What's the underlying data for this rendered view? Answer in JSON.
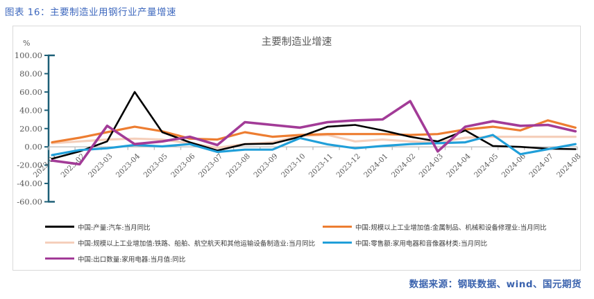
{
  "figure": {
    "caption": "图表 16：主要制造业用钢行业产量增速"
  },
  "source": {
    "text": "数据来源：钢联数据、wind、国元期货"
  },
  "chart_data": {
    "type": "line",
    "title": "主要制造业增速",
    "unit_label": "%",
    "ylim": [
      -60,
      100
    ],
    "y_tick_interval": 20,
    "y_tick_labels": [
      "100.00",
      "80.00",
      "60.00",
      "40.00",
      "20.00",
      "0.00",
      "-20.00",
      "-40.00",
      "-60.00"
    ],
    "grid": false,
    "legend_position": "bottom",
    "axis_color": "#1C5F77",
    "baseline_color": "#BFBFBF",
    "tick_label_color": "#595959",
    "categories": [
      "2023-01",
      "2023-02",
      "2023-03",
      "2023-04",
      "2023-05",
      "2023-06",
      "2023-07",
      "2023-08",
      "2023-09",
      "2023-10",
      "2023-11",
      "2023-12",
      "2024-01",
      "2024-02",
      "2024-03",
      "2024-04",
      "2024-05",
      "2024-06",
      "2024-07",
      "2024-08"
    ],
    "series": [
      {
        "name": "中国:产量:汽车:当月同比",
        "color": "#000000",
        "stroke_width": 2.6,
        "values": [
          -13,
          -5,
          6,
          60,
          16,
          5,
          -4,
          3,
          3.5,
          11,
          22,
          24,
          18,
          11,
          6,
          18,
          1,
          0,
          -2,
          -2.5
        ]
      },
      {
        "name": "中国:规模以上工业增加值:金属制品、机械和设备修理业:当月同比",
        "color": "#ED7D31",
        "stroke_width": 3.2,
        "values": [
          5,
          10,
          16,
          22,
          17,
          9,
          8,
          16,
          11,
          13,
          14,
          14,
          14,
          13,
          14,
          19,
          22,
          18,
          29,
          21
        ]
      },
      {
        "name": "中国:规模以上工业增加值:铁路、船舶、航空航天和其他运输设备制造业:当月同比",
        "color": "#F5CFBB",
        "stroke_width": 3.2,
        "values": [
          4,
          6,
          8,
          9,
          8,
          4,
          -1,
          3,
          5,
          12,
          13,
          6,
          8,
          6,
          5,
          10,
          11,
          11,
          11,
          11
        ]
      },
      {
        "name": "中国:零售额:家用电器和音像器材类:当月同比",
        "color": "#209FD9",
        "stroke_width": 3.2,
        "values": [
          -9,
          -3.5,
          -1.5,
          2,
          0.5,
          3,
          -5.5,
          -3,
          -3,
          9.6,
          2.7,
          -1.5,
          1,
          3,
          4,
          5,
          13,
          -8,
          -2.5,
          3
        ]
      },
      {
        "name": "中国:出口数量:家用电器:当月值:同比",
        "color": "#A23B97",
        "stroke_width": 3.6,
        "values": [
          -15,
          -19,
          23,
          3,
          6,
          11,
          2,
          27,
          24,
          21,
          27,
          29,
          30,
          50,
          -5,
          22,
          28,
          23,
          24,
          17
        ]
      }
    ],
    "draw_order": [
      2,
      1,
      0,
      3,
      4
    ],
    "legend_columns": {
      "left": [
        0,
        2,
        4
      ],
      "right": [
        1,
        3
      ]
    }
  }
}
